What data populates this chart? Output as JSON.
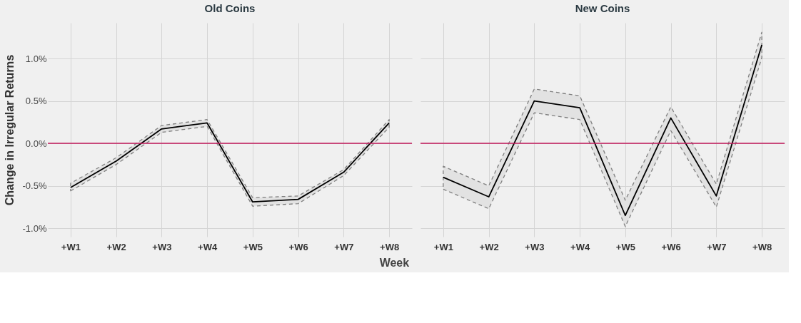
{
  "chart_data": [
    {
      "type": "line",
      "title": "Old Coins",
      "xlabel": "Week",
      "ylabel": "Change in Irregular Returns",
      "categories": [
        "+W1",
        "+W2",
        "+W3",
        "+W4",
        "+W5",
        "+W6",
        "+W7",
        "+W8"
      ],
      "series": [
        {
          "color": "#000000",
          "line_style": "solid",
          "values": [
            -0.52,
            -0.21,
            0.17,
            0.24,
            -0.69,
            -0.66,
            -0.34,
            0.24
          ],
          "lower": [
            -0.56,
            -0.25,
            0.13,
            0.2,
            -0.74,
            -0.71,
            -0.38,
            0.19
          ],
          "upper": [
            -0.47,
            -0.17,
            0.21,
            0.28,
            -0.64,
            -0.62,
            -0.31,
            0.28
          ]
        }
      ],
      "ylim": [
        -1.1,
        1.42
      ],
      "yticks": [
        {
          "value": -1.0,
          "label": "-1.0%"
        },
        {
          "value": -0.5,
          "label": "-0.5%"
        },
        {
          "value": 0,
          "label": "0.0%"
        },
        {
          "value": 0.5,
          "label": "0.5%"
        },
        {
          "value": 1.0,
          "label": "1.0%"
        }
      ],
      "ref_lines": [
        {
          "axis": "y",
          "value": 0,
          "color": "#c2185b"
        }
      ],
      "grid": true,
      "marker": "none"
    },
    {
      "type": "line",
      "title": "New Coins",
      "categories": [
        "+W1",
        "+W2",
        "+W3",
        "+W4",
        "+W5",
        "+W6",
        "+W7",
        "+W8"
      ],
      "series": [
        {
          "color": "#000000",
          "line_style": "solid",
          "values": [
            -0.4,
            -0.63,
            0.5,
            0.42,
            -0.85,
            0.3,
            -0.62,
            1.16
          ],
          "lower": [
            -0.54,
            -0.77,
            0.36,
            0.28,
            -0.98,
            0.15,
            -0.75,
            1.01
          ],
          "upper": [
            -0.27,
            -0.5,
            0.64,
            0.56,
            -0.67,
            0.43,
            -0.48,
            1.31
          ]
        }
      ],
      "ylim": [
        -1.1,
        1.42
      ],
      "yticks": [
        -1.0,
        -0.5,
        0,
        0.5,
        1.0
      ],
      "ref_lines": [
        {
          "axis": "y",
          "value": 0,
          "color": "#c2185b"
        }
      ],
      "grid": true,
      "marker": "none",
      "tick_labels": "x"
    }
  ]
}
